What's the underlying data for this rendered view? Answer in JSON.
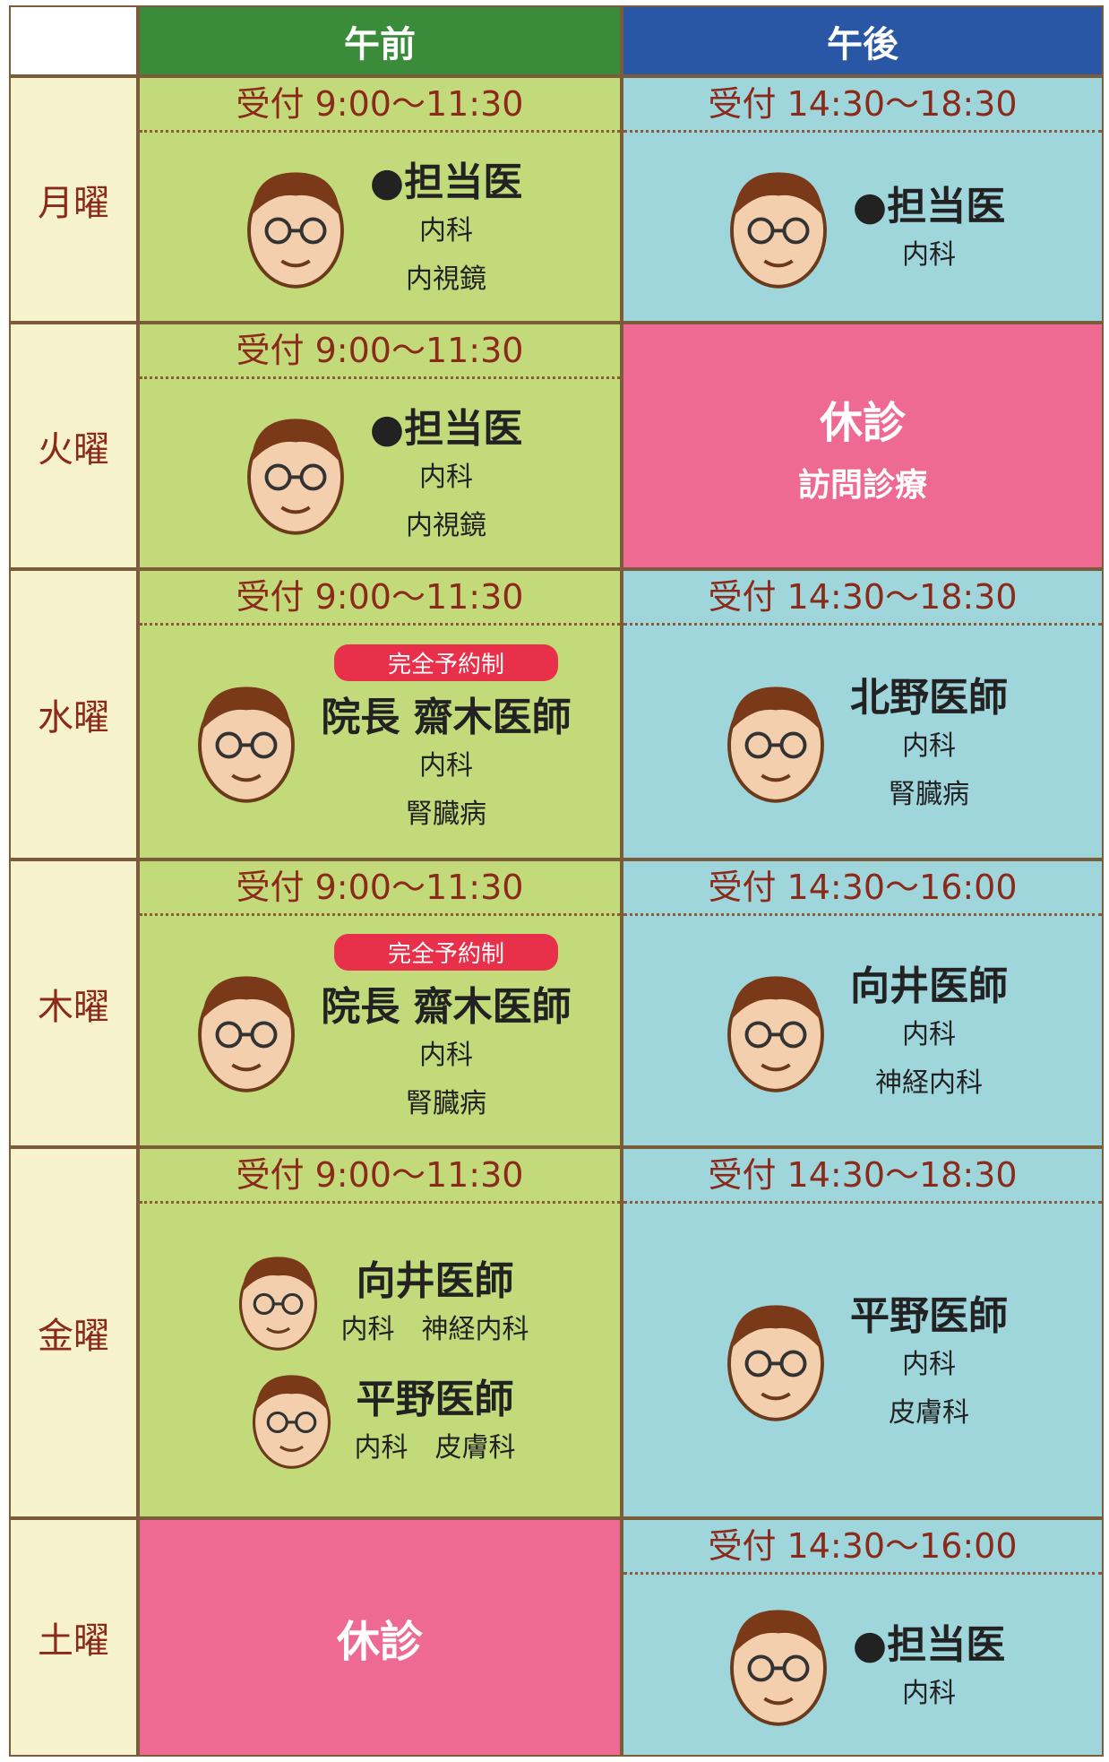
{
  "header": {
    "columns": [
      "午前",
      "午後"
    ]
  },
  "rows": [
    {
      "day": "月曜",
      "am": {
        "reception": "受付 9:00〜11:30",
        "doctors": [
          {
            "name": "●担当医",
            "departments": [
              "内科",
              "内視鏡"
            ]
          }
        ]
      },
      "pm": {
        "reception": "受付 14:30〜18:30",
        "doctors": [
          {
            "name": "●担当医",
            "departments": [
              "内科"
            ]
          }
        ]
      }
    },
    {
      "day": "火曜",
      "am": {
        "reception": "受付 9:00〜11:30",
        "doctors": [
          {
            "name": "●担当医",
            "departments": [
              "内科",
              "内視鏡"
            ]
          }
        ]
      },
      "pm": {
        "closed": "休診",
        "note": "訪問診療"
      }
    },
    {
      "day": "水曜",
      "am": {
        "reception": "受付 9:00〜11:30",
        "doctors": [
          {
            "badge": "完全予約制",
            "name": "院長 齋木医師",
            "departments": [
              "内科",
              "腎臓病"
            ]
          }
        ]
      },
      "pm": {
        "reception": "受付 14:30〜18:30",
        "doctors": [
          {
            "name": "北野医師",
            "departments": [
              "内科",
              "腎臓病"
            ]
          }
        ]
      }
    },
    {
      "day": "木曜",
      "am": {
        "reception": "受付 9:00〜11:30",
        "doctors": [
          {
            "badge": "完全予約制",
            "name": "院長 齋木医師",
            "departments": [
              "内科",
              "腎臓病"
            ]
          }
        ]
      },
      "pm": {
        "reception": "受付 14:30〜16:00",
        "doctors": [
          {
            "name": "向井医師",
            "departments": [
              "内科",
              "神経内科"
            ]
          }
        ]
      }
    },
    {
      "day": "金曜",
      "am": {
        "reception": "受付 9:00〜11:30",
        "doctors": [
          {
            "name": "向井医師",
            "departments": [
              "内科",
              "神経内科"
            ],
            "inline": true
          },
          {
            "name": "平野医師",
            "departments": [
              "内科",
              "皮膚科"
            ],
            "inline": true
          }
        ]
      },
      "pm": {
        "reception": "受付 14:30〜18:30",
        "doctors": [
          {
            "name": "平野医師",
            "departments": [
              "内科",
              "皮膚科"
            ]
          }
        ]
      }
    },
    {
      "day": "土曜",
      "am": {
        "closed": "休診"
      },
      "pm": {
        "reception": "受付 14:30〜16:00",
        "doctors": [
          {
            "name": "●担当医",
            "departments": [
              "内科"
            ]
          }
        ]
      }
    }
  ]
}
